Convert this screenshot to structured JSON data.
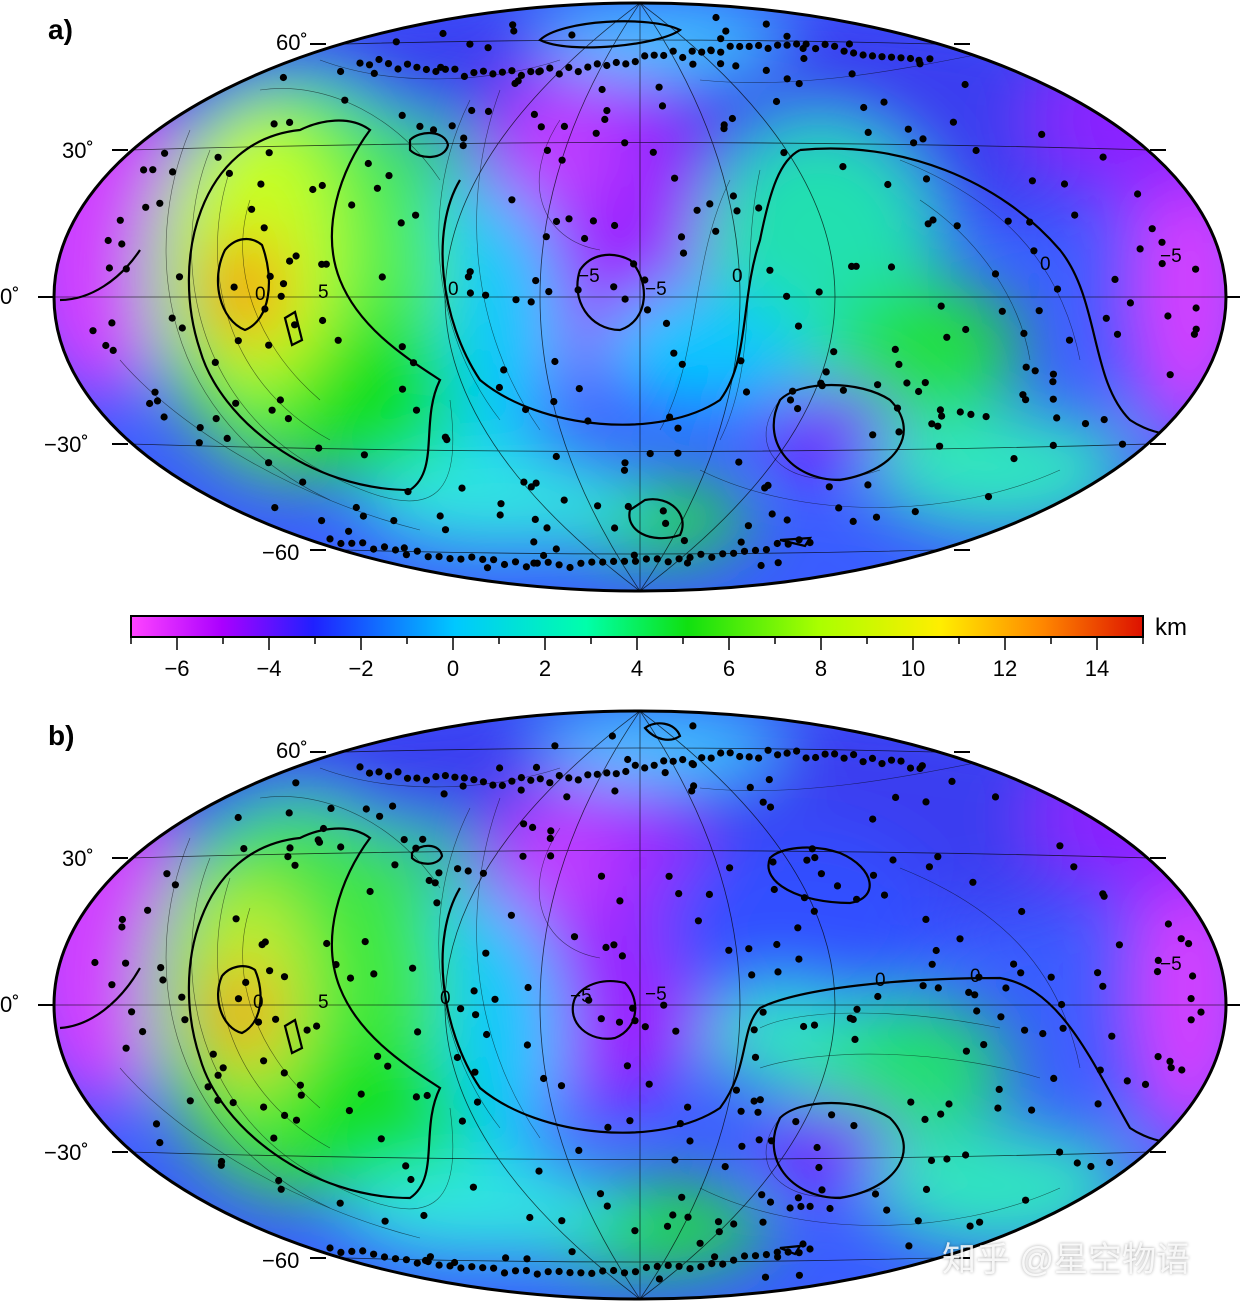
{
  "panels": [
    {
      "letter": "a)",
      "lat_labels": [
        "60˚",
        "30˚",
        "0˚",
        "−30˚",
        "−60"
      ],
      "contour_labels": [
        "0",
        "5",
        "0",
        "−5",
        "−5",
        "0",
        "0",
        "−5"
      ]
    },
    {
      "letter": "b)",
      "lat_labels": [
        "60˚",
        "30˚",
        "0˚",
        "−30˚",
        "−60"
      ],
      "contour_labels": [
        "0",
        "5",
        "0",
        "−5",
        "−5",
        "0",
        "0",
        "−5"
      ]
    }
  ],
  "colorbar": {
    "unit": "km",
    "min": -7,
    "max": 15,
    "ticks": [
      "−6",
      "−4",
      "−2",
      "0",
      "2",
      "4",
      "6",
      "8",
      "10",
      "12",
      "14"
    ],
    "tick_values": [
      -6,
      -4,
      -2,
      0,
      2,
      4,
      6,
      8,
      10,
      12,
      14
    ],
    "colors": [
      "#ff44ff",
      "#aa00ff",
      "#2020ff",
      "#00c8ff",
      "#00ffaa",
      "#10e010",
      "#aaff00",
      "#ffee00",
      "#ff8800",
      "#dd1100"
    ]
  },
  "watermark": "知乎 @星空物语",
  "colors": {
    "dot": "#000000",
    "outline": "#000000"
  }
}
